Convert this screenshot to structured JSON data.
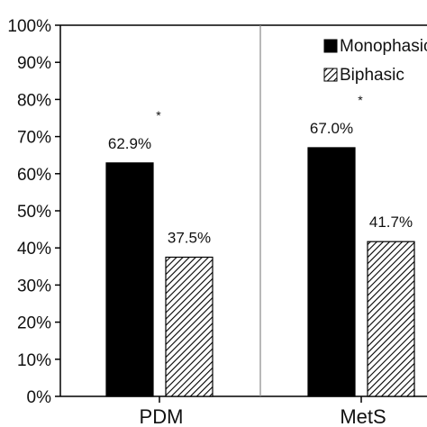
{
  "chart_data": {
    "type": "bar",
    "categories": [
      "PDM",
      "MetS"
    ],
    "series": [
      {
        "name": "Monophasic",
        "values": [
          62.9,
          67.0
        ],
        "fill": "solid",
        "color": "#000000"
      },
      {
        "name": "Biphasic",
        "values": [
          37.5,
          41.7
        ],
        "fill": "diagonal-hatch",
        "color": "#000000"
      }
    ],
    "data_labels": [
      [
        "62.9%",
        "67.0%"
      ],
      [
        "37.5%",
        "41.7%"
      ]
    ],
    "significance_marks": [
      "*",
      "*"
    ],
    "ylim": [
      0,
      100
    ],
    "yticks": [
      "0%",
      "10%",
      "20%",
      "30%",
      "40%",
      "50%",
      "60%",
      "70%",
      "80%",
      "90%",
      "100%"
    ],
    "title": "",
    "xlabel": "",
    "ylabel": "",
    "grid": false,
    "group_separator": true,
    "legend": {
      "position": "top-right",
      "entries": [
        "Monophasic",
        "Biphasic"
      ]
    }
  }
}
